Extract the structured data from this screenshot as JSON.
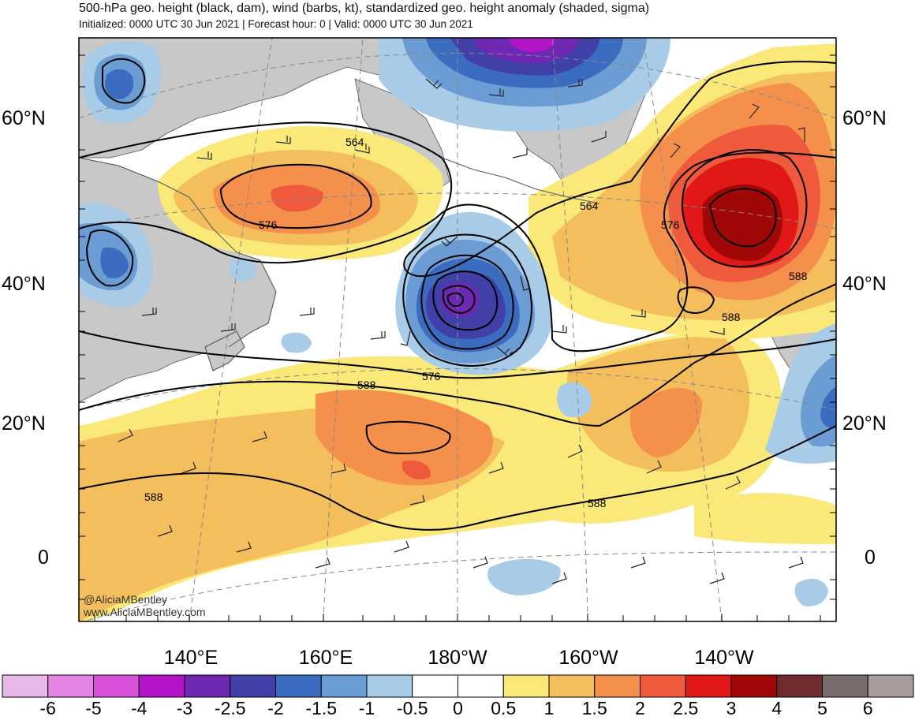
{
  "title": "500-hPa geo. height (black, dam), wind (barbs, kt), standardized geo. height anomaly (shaded, sigma)",
  "subtitle": "Initialized: 0000 UTC 30 Jun 2021 | Forecast hour: 0 | Valid: 0000 UTC 30 Jun 2021",
  "map": {
    "latitude_labels": [
      "60°N",
      "40°N",
      "20°N",
      "0"
    ],
    "longitude_labels": [
      "140°E",
      "160°E",
      "180°W",
      "160°W",
      "140°W"
    ],
    "contour_labels": [
      "564",
      "576",
      "564",
      "576",
      "576",
      "588",
      "588",
      "588",
      "588",
      "588"
    ],
    "credits": [
      "@AliciaMBentley",
      "www.AliciaMBentley.com"
    ],
    "colors": {
      "land": "#c8c8c8",
      "contour": "#000000",
      "coastline": "#555555",
      "gridline": "#888888"
    }
  },
  "colorbar": {
    "labels": [
      "-6",
      "-5",
      "-4",
      "-3",
      "-2.5",
      "-2",
      "-1.5",
      "-1",
      "-0.5",
      "0",
      "0.5",
      "1",
      "1.5",
      "2",
      "2.5",
      "3",
      "4",
      "5",
      "6"
    ],
    "colors": [
      "#e8b8e8",
      "#e484e4",
      "#d850d8",
      "#b414c8",
      "#6e28b4",
      "#4040a8",
      "#3c6cc0",
      "#6c9cd4",
      "#a8cce8",
      "#ffffff",
      "#ffffff",
      "#fae878",
      "#f4be5c",
      "#f4904c",
      "#f05a3c",
      "#e01818",
      "#a00808",
      "#6e2c2c",
      "#786c6c",
      "#a89c9c"
    ]
  }
}
